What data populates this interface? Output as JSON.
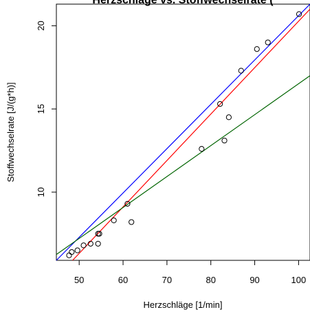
{
  "chart_data": {
    "type": "scatter",
    "title": "Herzschläge vs. Stoffwechselrate (",
    "xlabel": "Herzschläge [1/min]",
    "ylabel": "Stoffwechselrate [J/(g*h)]",
    "xlim": [
      44.8,
      102.6
    ],
    "ylim": [
      5.9,
      21.3
    ],
    "x_ticks": [
      50,
      60,
      70,
      80,
      90,
      100
    ],
    "y_ticks": [
      10,
      15,
      20
    ],
    "points": [
      {
        "x": 47.7,
        "y": 6.2
      },
      {
        "x": 48.3,
        "y": 6.4
      },
      {
        "x": 49.6,
        "y": 6.5
      },
      {
        "x": 51.0,
        "y": 6.8
      },
      {
        "x": 52.6,
        "y": 6.9
      },
      {
        "x": 54.3,
        "y": 6.9
      },
      {
        "x": 54.3,
        "y": 7.5
      },
      {
        "x": 54.6,
        "y": 7.5
      },
      {
        "x": 57.9,
        "y": 8.3
      },
      {
        "x": 61.0,
        "y": 9.3
      },
      {
        "x": 61.9,
        "y": 8.2
      },
      {
        "x": 77.9,
        "y": 12.6
      },
      {
        "x": 82.1,
        "y": 15.3
      },
      {
        "x": 83.1,
        "y": 13.1
      },
      {
        "x": 84.1,
        "y": 14.5
      },
      {
        "x": 86.9,
        "y": 17.3
      },
      {
        "x": 90.5,
        "y": 18.6
      },
      {
        "x": 93.0,
        "y": 19.0
      },
      {
        "x": 100.1,
        "y": 20.7
      }
    ],
    "lines": [
      {
        "color": "#0000ff",
        "p1": [
          44.8,
          5.9
        ],
        "p2": [
          102.6,
          21.3
        ]
      },
      {
        "color": "#ff0000",
        "p1": [
          48.5,
          5.9
        ],
        "p2": [
          102.6,
          21.0
        ]
      },
      {
        "color": "#006400",
        "p1": [
          44.8,
          6.25
        ],
        "p2": [
          102.6,
          17.0
        ]
      }
    ]
  }
}
